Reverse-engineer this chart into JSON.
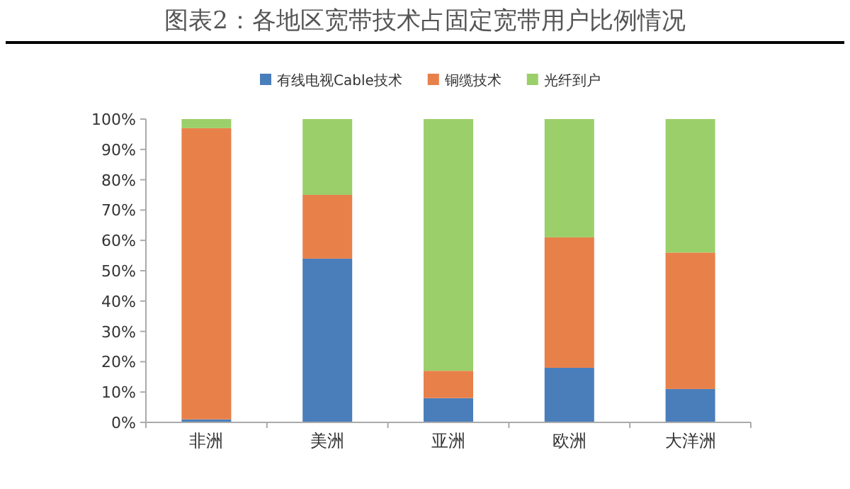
{
  "chart_data": {
    "type": "bar",
    "title": "图表2：各地区宽带技术占固定宽带用户比例情况",
    "stacked": true,
    "categories": [
      "非洲",
      "美洲",
      "亚洲",
      "欧洲",
      "大洋洲"
    ],
    "series": [
      {
        "name": "有线电视Cable技术",
        "color": "#4a7ebb",
        "values": [
          1,
          54,
          8,
          18,
          11
        ]
      },
      {
        "name": "铜缆技术",
        "color": "#e8804a",
        "values": [
          96,
          21,
          9,
          43,
          45
        ]
      },
      {
        "name": "光纤到户",
        "color": "#9bcf6a",
        "values": [
          3,
          25,
          83,
          39,
          44
        ]
      }
    ],
    "ylim": [
      0,
      100
    ],
    "yticks": [
      {
        "value": 0,
        "label": "0%"
      },
      {
        "value": 10,
        "label": "10%"
      },
      {
        "value": 20,
        "label": "20%"
      },
      {
        "value": 30,
        "label": "30%"
      },
      {
        "value": 40,
        "label": "40%"
      },
      {
        "value": 50,
        "label": "50%"
      },
      {
        "value": 60,
        "label": "60%"
      },
      {
        "value": 70,
        "label": "70%"
      },
      {
        "value": 80,
        "label": "80%"
      },
      {
        "value": 90,
        "label": "90%"
      },
      {
        "value": 100,
        "label": "100%"
      }
    ],
    "legend": "top",
    "grid": false
  }
}
